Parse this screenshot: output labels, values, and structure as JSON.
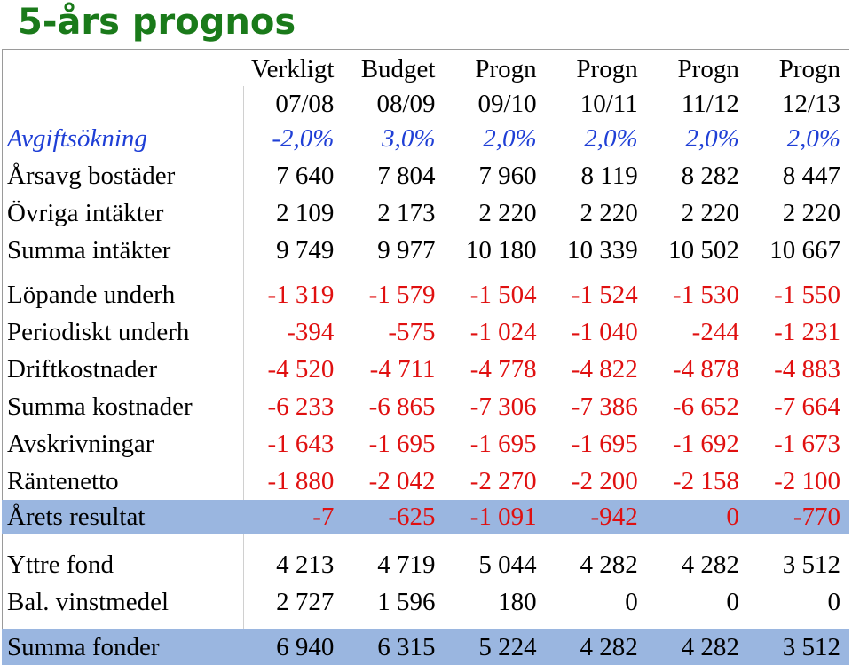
{
  "title": "5-års prognos",
  "columns": [
    {
      "line1": "Verkligt",
      "line2": "07/08"
    },
    {
      "line1": "Budget",
      "line2": "08/09"
    },
    {
      "line1": "Progn",
      "line2": "09/10"
    },
    {
      "line1": "Progn",
      "line2": "10/11"
    },
    {
      "line1": "Progn",
      "line2": "11/12"
    },
    {
      "line1": "Progn",
      "line2": "12/13"
    }
  ],
  "rows": [
    {
      "label": "Avgiftsökning",
      "values": [
        "-2,0%",
        "3,0%",
        "2,0%",
        "2,0%",
        "2,0%",
        "2,0%"
      ],
      "style": "blue-italic"
    },
    {
      "label": "Årsavg bostäder",
      "values": [
        "7 640",
        "7 804",
        "7 960",
        "8 119",
        "8 282",
        "8 447"
      ]
    },
    {
      "label": "Övriga intäkter",
      "values": [
        "2 109",
        "2 173",
        "2 220",
        "2 220",
        "2 220",
        "2 220"
      ]
    },
    {
      "label": "Summa intäkter",
      "values": [
        "9 749",
        "9 977",
        "10 180",
        "10 339",
        "10 502",
        "10 667"
      ]
    },
    {
      "label": "Löpande underh",
      "values": [
        "-1 319",
        "-1 579",
        "-1 504",
        "-1 524",
        "-1 530",
        "-1 550"
      ]
    },
    {
      "label": "Periodiskt underh",
      "values": [
        "-394",
        "-575",
        "-1 024",
        "-1 040",
        "-244",
        "-1 231"
      ]
    },
    {
      "label": "Driftkostnader",
      "values": [
        "-4 520",
        "-4 711",
        "-4 778",
        "-4 822",
        "-4 878",
        "-4 883"
      ]
    },
    {
      "label": "Summa kostnader",
      "values": [
        "-6 233",
        "-6 865",
        "-7 306",
        "-7 386",
        "-6 652",
        "-7 664"
      ]
    },
    {
      "label": "Avskrivningar",
      "values": [
        "-1 643",
        "-1 695",
        "-1 695",
        "-1 695",
        "-1 692",
        "-1 673"
      ]
    },
    {
      "label": "Räntenetto",
      "values": [
        "-1 880",
        "-2 042",
        "-2 270",
        "-2 200",
        "-2 158",
        "-2 100"
      ]
    },
    {
      "label": "Årets resultat",
      "values": [
        "-7",
        "-625",
        "-1 091",
        "-942",
        "0",
        "-770"
      ]
    },
    {
      "label": "Yttre fond",
      "values": [
        "4 213",
        "4 719",
        "5 044",
        "4 282",
        "4 282",
        "3 512"
      ]
    },
    {
      "label": "Bal. vinstmedel",
      "values": [
        "2 727",
        "1 596",
        "180",
        "0",
        "0",
        "0"
      ]
    },
    {
      "label": "Summa fonder",
      "values": [
        "6 940",
        "6 315",
        "5 224",
        "4 282",
        "4 282",
        "3 512"
      ]
    }
  ],
  "colors": {
    "title": "#1a7a1a",
    "blue_row": "#1f3fd6",
    "negative": "#e01010",
    "highlight_band": "#9ab6e0"
  }
}
